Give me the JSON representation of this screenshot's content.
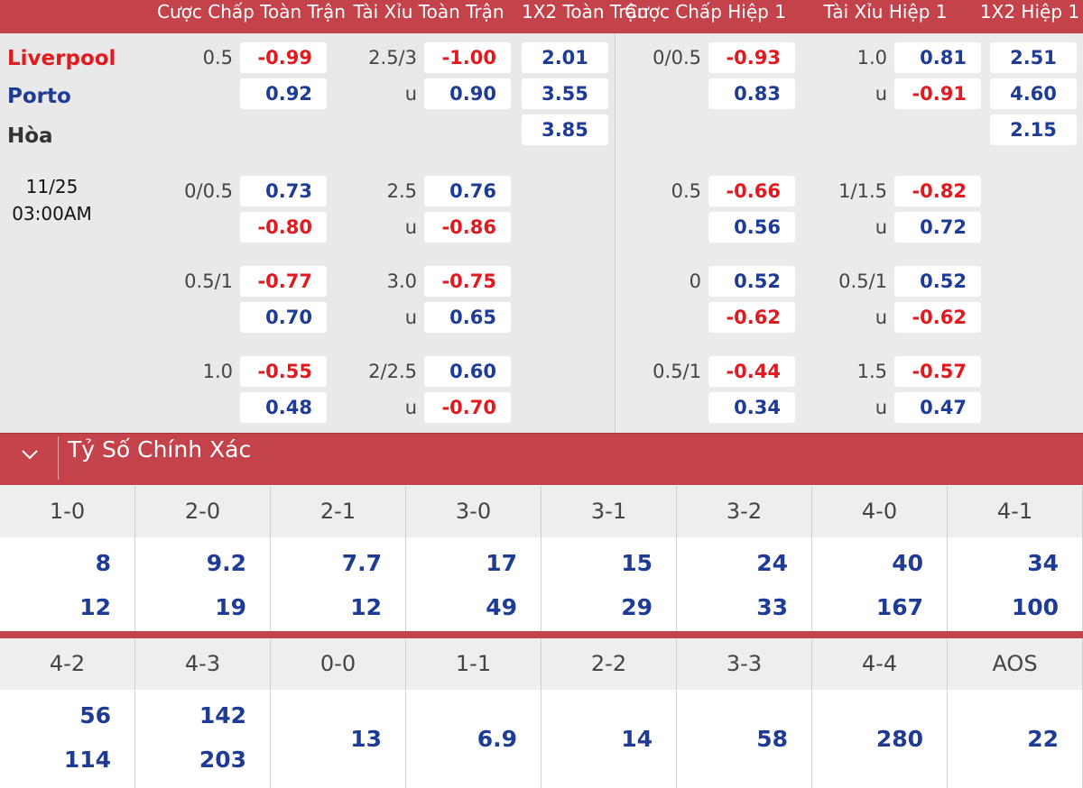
{
  "header": {
    "ah_full": "Cược Chấp Toàn Trận",
    "ou_full": "Tài Xỉu Toàn Trận",
    "x12_full": "1X2 Toàn Trận",
    "ah_half": "Cược Chấp Hiệp 1",
    "ou_half": "Tài Xỉu Hiệp 1",
    "x12_half": "1X2 Hiệp 1"
  },
  "match": {
    "home": "Liverpool",
    "away": "Porto",
    "draw": "Hòa",
    "date": "11/25",
    "time": "03:00AM"
  },
  "colors": {
    "accent": "#c4424a",
    "positive": "#1e3b96",
    "negative": "#e2191e"
  },
  "x12": {
    "full": {
      "home": "2.01",
      "away": "3.55",
      "draw": "3.85"
    },
    "half": {
      "home": "2.51",
      "away": "4.60",
      "draw": "2.15"
    }
  },
  "ah_full": [
    {
      "line": "0.5",
      "home": "-0.99",
      "away": "0.92"
    },
    {
      "line": "0/0.5",
      "home": "0.73",
      "away": "-0.80"
    },
    {
      "line": "0.5/1",
      "home": "-0.77",
      "away": "0.70"
    },
    {
      "line": "1.0",
      "home": "-0.55",
      "away": "0.48"
    }
  ],
  "ou_full": [
    {
      "line": "2.5/3",
      "under": "u",
      "over": "-1.00",
      "under_odds": "0.90"
    },
    {
      "line": "2.5",
      "under": "u",
      "over": "0.76",
      "under_odds": "-0.86"
    },
    {
      "line": "3.0",
      "under": "u",
      "over": "-0.75",
      "under_odds": "0.65"
    },
    {
      "line": "2/2.5",
      "under": "u",
      "over": "0.60",
      "under_odds": "-0.70"
    }
  ],
  "ah_half": [
    {
      "line": "0/0.5",
      "home": "-0.93",
      "away": "0.83"
    },
    {
      "line": "0.5",
      "home": "-0.66",
      "away": "0.56"
    },
    {
      "line": "0",
      "home": "0.52",
      "away": "-0.62"
    },
    {
      "line": "0.5/1",
      "home": "-0.44",
      "away": "0.34"
    }
  ],
  "ou_half": [
    {
      "line": "1.0",
      "under": "u",
      "over": "0.81",
      "under_odds": "-0.91"
    },
    {
      "line": "1/1.5",
      "under": "u",
      "over": "-0.82",
      "under_odds": "0.72"
    },
    {
      "line": "0.5/1",
      "under": "u",
      "over": "0.52",
      "under_odds": "-0.62"
    },
    {
      "line": "1.5",
      "under": "u",
      "over": "-0.57",
      "under_odds": "0.47"
    }
  ],
  "correct_score": {
    "title": "Tỷ Số Chính Xác",
    "row1": [
      {
        "score": "1-0",
        "home": "8",
        "away": "12"
      },
      {
        "score": "2-0",
        "home": "9.2",
        "away": "19"
      },
      {
        "score": "2-1",
        "home": "7.7",
        "away": "12"
      },
      {
        "score": "3-0",
        "home": "17",
        "away": "49"
      },
      {
        "score": "3-1",
        "home": "15",
        "away": "29"
      },
      {
        "score": "3-2",
        "home": "24",
        "away": "33"
      },
      {
        "score": "4-0",
        "home": "40",
        "away": "167"
      },
      {
        "score": "4-1",
        "home": "34",
        "away": "100"
      }
    ],
    "row2": [
      {
        "score": "4-2",
        "home": "56",
        "away": "114"
      },
      {
        "score": "4-3",
        "home": "142",
        "away": "203"
      },
      {
        "score": "0-0",
        "single": "13"
      },
      {
        "score": "1-1",
        "single": "6.9"
      },
      {
        "score": "2-2",
        "single": "14"
      },
      {
        "score": "3-3",
        "single": "58"
      },
      {
        "score": "4-4",
        "single": "280"
      },
      {
        "score": "AOS",
        "single": "22"
      }
    ]
  }
}
